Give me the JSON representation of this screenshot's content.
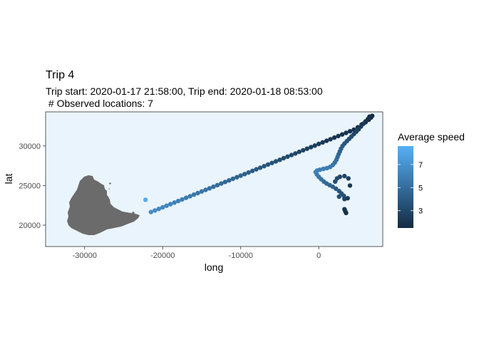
{
  "chart_data": {
    "type": "scatter",
    "title": "Trip 4",
    "subtitle_line1": "Trip start: 2020-01-17 21:58:00, Trip end: 2020-01-18 08:53:00",
    "subtitle_line2": " # Observed locations: 7",
    "xlabel": "long",
    "ylabel": "lat",
    "xlim": [
      -35000,
      8200
    ],
    "ylim": [
      17300,
      34300
    ],
    "x_ticks": [
      -30000,
      -20000,
      -10000,
      0
    ],
    "x_tick_labels": [
      "-30000",
      "-20000",
      "-10000",
      "0"
    ],
    "y_ticks": [
      20000,
      25000,
      30000
    ],
    "y_tick_labels": [
      "20000",
      "25000",
      "30000"
    ],
    "panel_background": "#eaf4fc",
    "land_color": "#6b6b6b",
    "grid": false,
    "legend": {
      "title": "Average speed",
      "placement": "right",
      "ticks": [
        3,
        5,
        7
      ],
      "tick_labels": [
        "3",
        "5",
        "7"
      ],
      "range": [
        1.5,
        8.6
      ],
      "color_low": "#132b43",
      "color_high": "#56b1f7"
    },
    "series": [
      {
        "points": [
          [
            -22200,
            23200,
            8.3
          ],
          [
            -21500,
            21650,
            6.7
          ],
          [
            -21000,
            21850,
            6.6
          ],
          [
            -20500,
            22050,
            6.5
          ],
          [
            -20000,
            22250,
            6.4
          ],
          [
            -19500,
            22450,
            6.3
          ],
          [
            -19000,
            22650,
            6.2
          ],
          [
            -18500,
            22850,
            6.1
          ],
          [
            -18000,
            23050,
            6.0
          ],
          [
            -17500,
            23250,
            5.9
          ],
          [
            -17000,
            23450,
            5.8
          ],
          [
            -16500,
            23650,
            5.7
          ],
          [
            -16000,
            23850,
            5.6
          ],
          [
            -15500,
            24050,
            5.5
          ],
          [
            -15000,
            24250,
            5.4
          ],
          [
            -14500,
            24450,
            5.3
          ],
          [
            -14000,
            24650,
            5.2
          ],
          [
            -13500,
            24850,
            5.1
          ],
          [
            -13000,
            25050,
            5.0
          ],
          [
            -12500,
            25250,
            4.9
          ],
          [
            -12000,
            25450,
            4.8
          ],
          [
            -11500,
            25650,
            4.7
          ],
          [
            -11000,
            25850,
            4.6
          ],
          [
            -10500,
            26050,
            4.5
          ],
          [
            -10000,
            26250,
            4.4
          ],
          [
            -9500,
            26450,
            4.3
          ],
          [
            -9000,
            26650,
            4.2
          ],
          [
            -8500,
            26850,
            4.1
          ],
          [
            -8000,
            27050,
            4.0
          ],
          [
            -7500,
            27250,
            3.9
          ],
          [
            -7000,
            27450,
            3.8
          ],
          [
            -6500,
            27650,
            3.7
          ],
          [
            -6000,
            27850,
            3.6
          ],
          [
            -5500,
            28050,
            3.5
          ],
          [
            -5000,
            28250,
            3.4
          ],
          [
            -4500,
            28450,
            3.3
          ],
          [
            -4000,
            28650,
            3.2
          ],
          [
            -3500,
            28850,
            3.1
          ],
          [
            -3000,
            29050,
            3.0
          ],
          [
            -2500,
            29250,
            2.9
          ],
          [
            -2000,
            29450,
            2.8
          ],
          [
            -1500,
            29650,
            2.7
          ],
          [
            -1000,
            29850,
            2.6
          ],
          [
            -500,
            30050,
            2.5
          ],
          [
            0,
            30250,
            2.4
          ],
          [
            500,
            30450,
            2.3
          ],
          [
            1000,
            30650,
            2.2
          ],
          [
            1500,
            30850,
            2.1
          ],
          [
            2000,
            31050,
            2.0
          ],
          [
            2500,
            31250,
            2.0
          ],
          [
            3000,
            31450,
            1.9
          ],
          [
            3500,
            31650,
            1.9
          ],
          [
            4000,
            31850,
            1.8
          ],
          [
            4500,
            32050,
            1.8
          ],
          [
            5000,
            32350,
            1.8
          ],
          [
            5500,
            32700,
            1.7
          ],
          [
            6000,
            33000,
            1.7
          ],
          [
            6400,
            33300,
            1.6
          ],
          [
            6700,
            33600,
            1.6
          ],
          [
            6850,
            33800,
            1.6
          ],
          [
            6500,
            33700,
            1.7
          ],
          [
            6300,
            33400,
            1.8
          ],
          [
            6000,
            33100,
            2.0
          ],
          [
            5700,
            32800,
            2.2
          ],
          [
            5400,
            32450,
            2.4
          ],
          [
            5100,
            32100,
            2.6
          ],
          [
            4800,
            31800,
            2.8
          ],
          [
            4500,
            31500,
            3.0
          ],
          [
            4200,
            31200,
            3.2
          ],
          [
            3900,
            30900,
            3.4
          ],
          [
            3600,
            30600,
            3.6
          ],
          [
            3300,
            30300,
            3.8
          ],
          [
            3050,
            30000,
            4.0
          ],
          [
            2850,
            29650,
            4.2
          ],
          [
            2700,
            29300,
            4.4
          ],
          [
            2550,
            28950,
            4.6
          ],
          [
            2400,
            28600,
            4.8
          ],
          [
            2250,
            28250,
            5.0
          ],
          [
            2050,
            27900,
            5.2
          ],
          [
            1800,
            27600,
            5.4
          ],
          [
            1450,
            27350,
            5.6
          ],
          [
            1050,
            27200,
            5.8
          ],
          [
            600,
            27100,
            5.9
          ],
          [
            150,
            27000,
            6.0
          ],
          [
            -200,
            26900,
            6.0
          ],
          [
            -400,
            26700,
            6.1
          ],
          [
            -250,
            26400,
            5.9
          ],
          [
            0,
            26100,
            5.6
          ],
          [
            300,
            25800,
            5.3
          ],
          [
            650,
            25500,
            5.0
          ],
          [
            1000,
            25250,
            4.8
          ],
          [
            1400,
            25050,
            4.6
          ],
          [
            1800,
            24850,
            4.4
          ],
          [
            2200,
            24600,
            4.0
          ],
          [
            2600,
            24300,
            3.8
          ],
          [
            2900,
            24000,
            3.6
          ],
          [
            3200,
            23700,
            3.4
          ],
          [
            2700,
            26100,
            3.0
          ],
          [
            2350,
            25900,
            3.2
          ],
          [
            2100,
            25500,
            3.4
          ],
          [
            3300,
            26200,
            2.8
          ],
          [
            3800,
            25900,
            2.6
          ],
          [
            4000,
            25000,
            2.2
          ],
          [
            2600,
            23600,
            3.3
          ],
          [
            3300,
            23300,
            2.8
          ],
          [
            3700,
            23400,
            2.4
          ],
          [
            3300,
            22000,
            2.0
          ],
          [
            3400,
            21750,
            1.9
          ],
          [
            3500,
            21550,
            1.8
          ]
        ]
      }
    ]
  }
}
